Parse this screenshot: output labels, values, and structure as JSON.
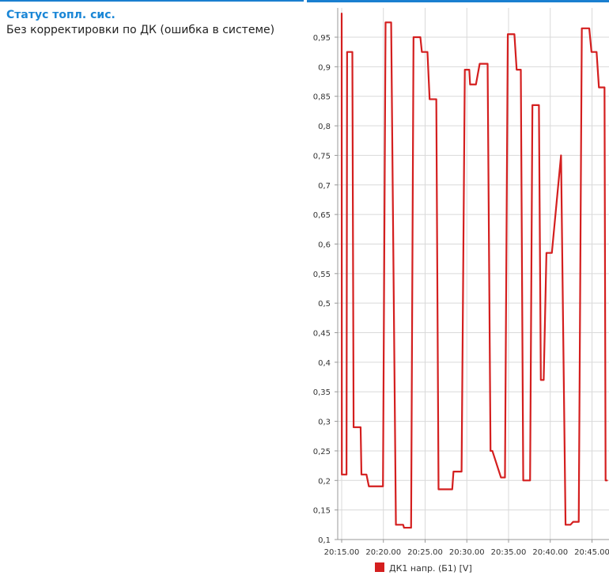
{
  "status": {
    "title": "Статус топл. сис.",
    "value": "Без корректировки по ДК (ошибка в системе)"
  },
  "colors": {
    "accent": "#1a86d6",
    "series": "#d41f1f",
    "grid": "#d9d9d9"
  },
  "chart_data": {
    "type": "line",
    "title": "",
    "xlabel": "",
    "ylabel": "",
    "ylim": [
      0.1,
      0.95
    ],
    "y_ticks": [
      "0,1",
      "0,15",
      "0,2",
      "0,25",
      "0,3",
      "0,35",
      "0,4",
      "0,45",
      "0,5",
      "0,55",
      "0,6",
      "0,65",
      "0,7",
      "0,75",
      "0,8",
      "0,85",
      "0,9",
      "0,95"
    ],
    "x_ticks": [
      "20:15.00",
      "20:20.00",
      "20:25.00",
      "20:30.00",
      "20:35.00",
      "20:40.00",
      "20:45.00"
    ],
    "grid": true,
    "legend": "bottom",
    "series": [
      {
        "name": "ДК1 напр. (Б1) [V]",
        "color": "#d41f1f",
        "points": [
          [
            "20:15.00",
            0.99
          ],
          [
            "20:15.02",
            0.21
          ],
          [
            "20:15.58",
            0.21
          ],
          [
            "20:15.65",
            0.925
          ],
          [
            "20:16.28",
            0.925
          ],
          [
            "20:16.43",
            0.29
          ],
          [
            "20:17.27",
            0.29
          ],
          [
            "20:17.37",
            0.21
          ],
          [
            "20:17.97",
            0.21
          ],
          [
            "20:18.26",
            0.19
          ],
          [
            "20:19.95",
            0.19
          ],
          [
            "20:20.26",
            0.975
          ],
          [
            "20:20.93",
            0.975
          ],
          [
            "20:21.50",
            0.125
          ],
          [
            "20:22.37",
            0.125
          ],
          [
            "20:22.47",
            0.12
          ],
          [
            "20:23.32",
            0.12
          ],
          [
            "20:23.61",
            0.95
          ],
          [
            "20:24.43",
            0.95
          ],
          [
            "20:24.61",
            0.925
          ],
          [
            "20:25.28",
            0.925
          ],
          [
            "20:25.54",
            0.845
          ],
          [
            "20:26.34",
            0.845
          ],
          [
            "20:26.61",
            0.185
          ],
          [
            "20:28.25",
            0.185
          ],
          [
            "20:28.40",
            0.215
          ],
          [
            "20:29.37",
            0.215
          ],
          [
            "20:29.76",
            0.895
          ],
          [
            "20:30.29",
            0.895
          ],
          [
            "20:30.39",
            0.87
          ],
          [
            "20:31.09",
            0.87
          ],
          [
            "20:31.54",
            0.905
          ],
          [
            "20:32.49",
            0.905
          ],
          [
            "20:32.84",
            0.25
          ],
          [
            "20:33.06",
            0.25
          ],
          [
            "20:34.09",
            0.205
          ],
          [
            "20:34.57",
            0.205
          ],
          [
            "20:34.91",
            0.955
          ],
          [
            "20:35.70",
            0.955
          ],
          [
            "20:35.97",
            0.895
          ],
          [
            "20:36.47",
            0.895
          ],
          [
            "20:36.76",
            0.2
          ],
          [
            "20:37.58",
            0.2
          ],
          [
            "20:37.86",
            0.835
          ],
          [
            "20:38.64",
            0.835
          ],
          [
            "20:38.87",
            0.37
          ],
          [
            "20:39.21",
            0.37
          ],
          [
            "20:39.54",
            0.585
          ],
          [
            "20:40.19",
            0.585
          ],
          [
            "20:41.29",
            0.75
          ],
          [
            "20:41.83",
            0.125
          ],
          [
            "20:42.42",
            0.125
          ],
          [
            "20:42.74",
            0.13
          ],
          [
            "20:43.41",
            0.13
          ],
          [
            "20:43.78",
            0.965
          ],
          [
            "20:44.67",
            0.965
          ],
          [
            "20:44.94",
            0.925
          ],
          [
            "20:45.55",
            0.925
          ],
          [
            "20:45.83",
            0.865
          ],
          [
            "20:46.50",
            0.865
          ],
          [
            "20:46.63",
            0.2
          ],
          [
            "20:46.80",
            0.2
          ]
        ]
      }
    ]
  }
}
